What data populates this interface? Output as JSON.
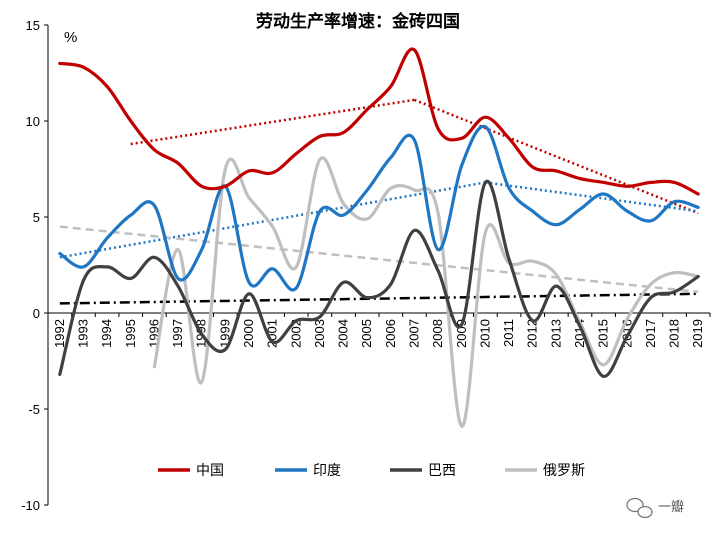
{
  "chart_data": {
    "type": "line",
    "title": "劳动生产率增速：金砖四国",
    "ylabel": "%",
    "ylim": [
      -10,
      15
    ],
    "yticks": [
      -10,
      -5,
      0,
      5,
      10,
      15
    ],
    "x": [
      "1992",
      "1993",
      "1994",
      "1995",
      "1996",
      "1997",
      "1998",
      "1999",
      "2000",
      "2001",
      "2002",
      "2003",
      "2004",
      "2005",
      "2006",
      "2007",
      "2008",
      "2009",
      "2010",
      "2011",
      "2012",
      "2013",
      "2014",
      "2015",
      "2016",
      "2017",
      "2018",
      "2019"
    ],
    "legend_position": "bottom",
    "grid": false,
    "series": [
      {
        "name": "中国",
        "color": "#c00000",
        "values": [
          13.0,
          12.8,
          11.8,
          10.0,
          8.5,
          7.8,
          6.6,
          6.6,
          7.4,
          7.3,
          8.3,
          9.2,
          9.4,
          10.6,
          11.8,
          13.7,
          9.6,
          9.1,
          10.2,
          9.1,
          7.6,
          7.4,
          7.0,
          6.8,
          6.6,
          6.8,
          6.8,
          6.2
        ]
      },
      {
        "name": "印度",
        "color": "#1f77c4",
        "values": [
          3.1,
          2.4,
          3.9,
          5.1,
          5.6,
          1.8,
          3.3,
          6.6,
          1.6,
          2.3,
          1.3,
          5.3,
          5.1,
          6.4,
          8.1,
          9.0,
          3.3,
          7.7,
          9.7,
          6.5,
          5.3,
          4.6,
          5.4,
          6.2,
          5.3,
          4.8,
          5.8,
          5.5
        ]
      },
      {
        "name": "巴西",
        "color": "#404040",
        "values": [
          -3.2,
          1.7,
          2.4,
          1.8,
          2.9,
          1.4,
          -1.1,
          -1.9,
          1.0,
          -1.5,
          -0.4,
          -0.2,
          1.6,
          0.8,
          1.5,
          4.3,
          2.2,
          -0.6,
          6.8,
          2.8,
          -0.4,
          1.4,
          -0.7,
          -3.3,
          -1.2,
          0.8,
          1.1,
          1.9
        ]
      },
      {
        "name": "俄罗斯",
        "color": "#bfbfbf",
        "values": [
          null,
          null,
          null,
          null,
          -2.8,
          3.3,
          -3.6,
          7.5,
          6.0,
          4.5,
          2.4,
          8.0,
          5.7,
          4.9,
          6.5,
          6.4,
          5.2,
          -5.9,
          4.2,
          2.6,
          2.7,
          2.0,
          -0.5,
          -2.7,
          -0.3,
          1.5,
          2.1,
          1.9
        ]
      }
    ],
    "trendlines": [
      {
        "series": "中国",
        "style": "dotted",
        "color": "#c00000",
        "segments": [
          {
            "x": [
              "1995",
              "2007"
            ],
            "y": [
              8.8,
              11.1
            ]
          },
          {
            "x": [
              "2007",
              "2019"
            ],
            "y": [
              11.1,
              5.2
            ]
          }
        ]
      },
      {
        "series": "印度",
        "style": "dotted",
        "color": "#1f77c4",
        "segments": [
          {
            "x": [
              "1992",
              "2010"
            ],
            "y": [
              2.9,
              6.8
            ]
          },
          {
            "x": [
              "2010",
              "2019"
            ],
            "y": [
              6.8,
              5.3
            ]
          }
        ]
      },
      {
        "series": "巴西",
        "style": "dashdot",
        "color": "#000000",
        "segments": [
          {
            "x": [
              "1992",
              "2019"
            ],
            "y": [
              0.5,
              1.0
            ]
          }
        ]
      },
      {
        "series": "俄罗斯",
        "style": "dashed",
        "color": "#bfbfbf",
        "segments": [
          {
            "x": [
              "1992",
              "2019"
            ],
            "y": [
              4.5,
              1.1
            ]
          }
        ]
      }
    ]
  },
  "watermark": {
    "text": "一瓣"
  }
}
